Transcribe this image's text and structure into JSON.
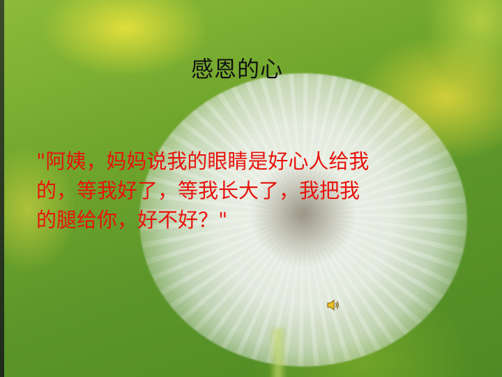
{
  "slide": {
    "title": "感恩的心",
    "quote_lines": [
      "\"阿姨，妈妈说我的眼睛是好心人给我",
      "的，等我好了，等我长大了，我把我",
      "的腿给你，好不好？\""
    ],
    "quote_color": "#e8120c",
    "title_color": "#111111",
    "audio_icon": "speaker-icon"
  }
}
